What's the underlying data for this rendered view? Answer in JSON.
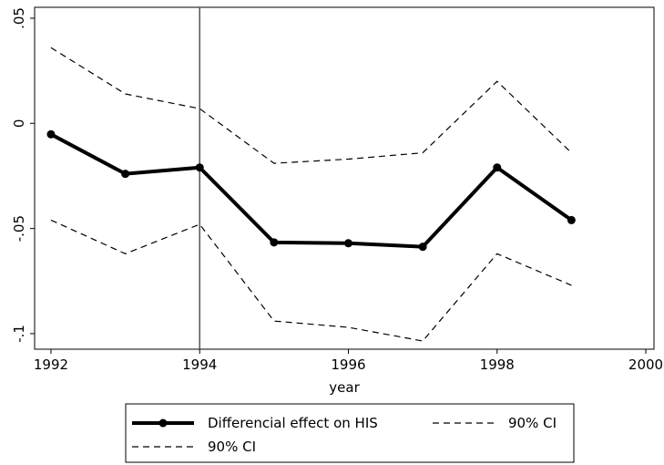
{
  "chart_data": {
    "type": "line",
    "x": [
      1992,
      1993,
      1994,
      1995,
      1996,
      1997,
      1998,
      1999
    ],
    "xlabel": "year",
    "xlim": [
      1991.78,
      2000.11
    ],
    "xticks": [
      1992,
      1994,
      1996,
      1998,
      2000
    ],
    "ylim": [
      -0.1074,
      0.0552
    ],
    "yticks": [
      {
        "value": 0.05,
        "label": ".05"
      },
      0,
      {
        "value": -0.05,
        "label": "-.05"
      },
      {
        "value": -0.1,
        "label": "-.1"
      }
    ],
    "xline": 1994,
    "series": [
      {
        "name": "Differencial effect on HIS",
        "color": "#000000",
        "style": "solid",
        "marker": true,
        "values": [
          -0.0052,
          -0.024,
          -0.021,
          -0.0566,
          -0.057,
          -0.0587,
          -0.021,
          -0.046
        ]
      },
      {
        "name": "90% CI",
        "color": "#000000",
        "style": "dashed",
        "marker": false,
        "values": [
          0.036,
          0.014,
          0.007,
          -0.019,
          -0.017,
          -0.014,
          0.02,
          -0.014
        ]
      },
      {
        "name": "90% CI",
        "color": "#000000",
        "style": "dashed",
        "marker": false,
        "values": [
          -0.046,
          -0.062,
          -0.048,
          -0.094,
          -0.097,
          -0.1035,
          -0.062,
          -0.077
        ]
      }
    ]
  }
}
